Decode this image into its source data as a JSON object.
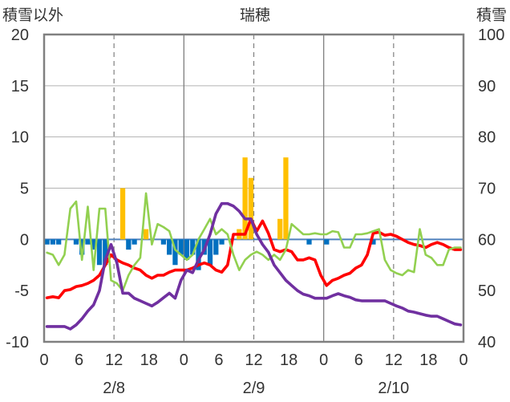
{
  "chart_data": {
    "type": "bar+line",
    "title": "瑞穂",
    "left_axis": {
      "label": "積雪以外",
      "range": [
        -10,
        20
      ],
      "ticks": [
        20,
        15,
        10,
        5,
        0,
        -5,
        -10
      ],
      "tick_labels": [
        "20",
        "15",
        "10",
        "5",
        "0",
        "-5",
        "-10"
      ]
    },
    "right_axis": {
      "label": "積雪",
      "range": [
        40,
        100
      ],
      "ticks": [
        100,
        90,
        80,
        70,
        60,
        50,
        40
      ],
      "tick_labels": [
        "100",
        "90",
        "80",
        "70",
        "60",
        "50",
        "40"
      ]
    },
    "x_axis": {
      "range": [
        0,
        72
      ],
      "tick_hours": [
        0,
        6,
        12,
        18,
        24,
        30,
        36,
        42,
        48,
        54,
        60,
        66,
        72
      ],
      "tick_labels": [
        "0",
        "6",
        "12",
        "18",
        "0",
        "6",
        "12",
        "18",
        "0",
        "6",
        "12",
        "18",
        "0"
      ],
      "dates": [
        {
          "label": "2/8",
          "hour": 12
        },
        {
          "label": "2/9",
          "hour": 36
        },
        {
          "label": "2/10",
          "hour": 60
        }
      ],
      "day_boundaries": [
        24,
        48
      ],
      "dashed_gridlines": [
        12,
        36,
        60
      ]
    },
    "grid": {
      "horizontal": true,
      "horizontal_values": [
        15,
        10,
        5
      ]
    },
    "colors": {
      "frame": "#808080",
      "grid": "#b3b3b3",
      "gridline_dashed": "#808080",
      "zero_line": "#4f81bd",
      "blue_bars": "#0070c0",
      "yellow_bars": "#ffc000",
      "red_line": "#ff0000",
      "green_line": "#92d050",
      "purple_line": "#7030a0"
    },
    "bars_blue": [
      {
        "x": 0,
        "y": -0.5
      },
      {
        "x": 1,
        "y": -0.5
      },
      {
        "x": 2,
        "y": -0.5
      },
      {
        "x": 5,
        "y": -0.5
      },
      {
        "x": 6,
        "y": -1.5
      },
      {
        "x": 7,
        "y": -0.5
      },
      {
        "x": 8,
        "y": -1.0
      },
      {
        "x": 9,
        "y": -2.5
      },
      {
        "x": 10,
        "y": -2.5
      },
      {
        "x": 14,
        "y": -1.0
      },
      {
        "x": 15,
        "y": -0.5
      },
      {
        "x": 20,
        "y": -0.5
      },
      {
        "x": 21,
        "y": -1.5
      },
      {
        "x": 22,
        "y": -2.5
      },
      {
        "x": 23,
        "y": -1.5
      },
      {
        "x": 24,
        "y": -2.0
      },
      {
        "x": 25,
        "y": -1.5
      },
      {
        "x": 26,
        "y": -3.0
      },
      {
        "x": 27,
        "y": -1.5
      },
      {
        "x": 28,
        "y": -2.5
      },
      {
        "x": 29,
        "y": -1.5
      },
      {
        "x": 30,
        "y": -0.5
      },
      {
        "x": 45,
        "y": -0.5
      },
      {
        "x": 48,
        "y": -0.5
      },
      {
        "x": 56,
        "y": -0.5
      }
    ],
    "bars_yellow": [
      {
        "x": 13,
        "y": 5
      },
      {
        "x": 17,
        "y": 1
      },
      {
        "x": 33,
        "y": 1
      },
      {
        "x": 34,
        "y": 8
      },
      {
        "x": 35,
        "y": 6
      },
      {
        "x": 40,
        "y": 2
      },
      {
        "x": 41,
        "y": 8
      }
    ],
    "series": [
      {
        "id": "red",
        "axis": "left",
        "x": [
          0,
          1,
          2,
          3,
          4,
          5,
          6,
          7,
          8,
          9,
          10,
          11,
          12,
          13,
          14,
          15,
          16,
          17,
          18,
          19,
          20,
          21,
          22,
          23,
          24,
          25,
          26,
          27,
          28,
          29,
          30,
          31,
          32,
          33,
          34,
          35,
          36,
          37,
          38,
          39,
          40,
          41,
          42,
          43,
          44,
          45,
          46,
          47,
          48,
          49,
          50,
          51,
          52,
          53,
          54,
          55,
          56,
          57,
          58,
          59,
          60,
          61,
          62,
          63,
          64,
          65,
          66,
          67,
          68,
          69,
          70,
          71
        ],
        "y": [
          -5.7,
          -5.6,
          -5.7,
          -5.0,
          -4.9,
          -4.6,
          -4.5,
          -4.3,
          -4.0,
          -3.5,
          -2.5,
          -1.5,
          -2.0,
          -2.3,
          -2.5,
          -2.8,
          -3.0,
          -3.5,
          -3.8,
          -3.5,
          -3.5,
          -3.2,
          -3.0,
          -3.0,
          -3.0,
          -2.8,
          -2.5,
          -2.3,
          -2.5,
          -3.0,
          -3.2,
          -2.5,
          0.5,
          0.5,
          0.5,
          2.0,
          0.8,
          1.8,
          0.6,
          -1.0,
          -1.2,
          -1.0,
          -1.2,
          -2.0,
          -2.0,
          -1.8,
          -2.0,
          -3.5,
          -4.5,
          -4.0,
          -3.8,
          -3.5,
          -3.3,
          -2.8,
          -2.5,
          -1.5,
          0.6,
          0.7,
          0.4,
          0.5,
          0.3,
          0.0,
          -0.3,
          -0.5,
          -0.6,
          -0.8,
          -0.5,
          -0.3,
          -0.5,
          -0.8,
          -1.0,
          -1.0
        ]
      },
      {
        "id": "green",
        "axis": "left",
        "x": [
          0,
          1,
          2,
          3,
          4,
          5,
          6,
          7,
          8,
          9,
          10,
          11,
          12,
          13,
          14,
          15,
          16,
          17,
          18,
          19,
          20,
          21,
          22,
          23,
          24,
          25,
          26,
          27,
          28,
          29,
          30,
          31,
          32,
          33,
          34,
          35,
          36,
          37,
          38,
          39,
          40,
          41,
          42,
          43,
          44,
          45,
          46,
          47,
          48,
          49,
          50,
          51,
          52,
          53,
          54,
          55,
          56,
          57,
          58,
          59,
          60,
          61,
          62,
          63,
          64,
          65,
          66,
          67,
          68,
          69,
          70,
          71
        ],
        "y": [
          -1.3,
          -1.5,
          -2.5,
          -1.5,
          3.0,
          3.7,
          -2.0,
          3.2,
          -3.0,
          3.0,
          3.0,
          -4.0,
          -4.3,
          -5.0,
          -3.5,
          -2.5,
          -1.8,
          4.5,
          -0.5,
          1.5,
          1.2,
          0.8,
          -1.0,
          -1.5,
          -2.0,
          -1.5,
          0.0,
          1.0,
          2.0,
          0.5,
          1.0,
          0.5,
          -1.5,
          -3.0,
          -2.0,
          -1.5,
          -1.2,
          -1.5,
          -2.0,
          -1.5,
          -2.0,
          -1.0,
          1.5,
          1.0,
          0.5,
          0.5,
          0.6,
          0.5,
          0.5,
          0.8,
          0.7,
          -0.8,
          -0.8,
          0.5,
          0.5,
          0.6,
          0.8,
          1.0,
          -2.0,
          -3.0,
          -3.3,
          -3.5,
          -3.0,
          -3.2,
          1.0,
          -1.5,
          -1.8,
          -2.5,
          -2.5,
          -1.0,
          -0.8,
          -0.8
        ]
      },
      {
        "id": "purple",
        "axis": "right",
        "x": [
          0,
          2,
          3,
          4,
          5,
          6,
          7,
          8,
          9,
          10,
          11,
          12,
          13,
          14,
          15,
          16,
          17,
          18,
          19,
          20,
          21,
          22,
          23,
          24,
          25,
          26,
          27,
          28,
          29,
          30,
          31,
          32,
          33,
          34,
          35,
          36,
          37,
          38,
          39,
          40,
          41,
          42,
          43,
          44,
          45,
          46,
          47,
          48,
          49,
          50,
          51,
          52,
          53,
          54,
          55,
          56,
          57,
          58,
          59,
          60,
          61,
          62,
          63,
          64,
          65,
          66,
          67,
          68,
          69,
          70,
          71
        ],
        "y": [
          43,
          43,
          43,
          42.5,
          43.3,
          44.5,
          46,
          47.2,
          50,
          56,
          59,
          55.4,
          49.5,
          49.5,
          48.5,
          48,
          47.5,
          47,
          47.7,
          48.6,
          49.5,
          48.5,
          52,
          54,
          53.5,
          56,
          58,
          61,
          65,
          67,
          67,
          66.5,
          65.5,
          64,
          64,
          61,
          59,
          57.5,
          55,
          53.5,
          52,
          51,
          50,
          49.3,
          49,
          48.5,
          48.5,
          48.5,
          49,
          49.4,
          49,
          48.7,
          48.2,
          48,
          48,
          48,
          48,
          48,
          47.5,
          47,
          46.6,
          46,
          45.8,
          45.5,
          45.2,
          45,
          45,
          44.5,
          44,
          43.5,
          43.3
        ]
      }
    ]
  }
}
